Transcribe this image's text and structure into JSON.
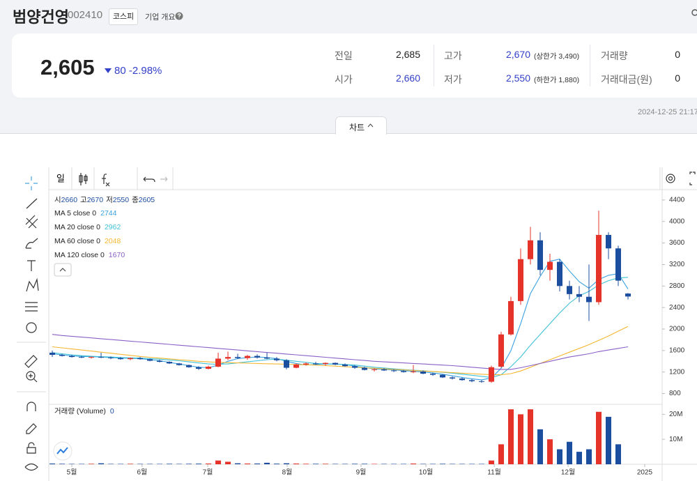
{
  "header": {
    "title": "범양건영",
    "code": "002410",
    "market": "코스피",
    "company_info": "기업 개요"
  },
  "quote": {
    "price": "2,605",
    "change": "80",
    "change_pct": "-2.98%"
  },
  "stats": [
    {
      "label": "전일",
      "value": "2,685"
    },
    {
      "label": "시가",
      "value": "2,660"
    },
    {
      "label": "고가",
      "value": "2,670",
      "note": "(상한가 3,490)"
    },
    {
      "label": "저가",
      "value": "2,550",
      "note": "(하한가 1,880)"
    },
    {
      "label": "거래량",
      "value": "0"
    },
    {
      "label": "거래대금(원)",
      "value": "0"
    }
  ],
  "timestamp": "2024-12-25 21:17",
  "tab": "차트",
  "toolbar": {
    "period": "일",
    "indicators": "지표"
  },
  "chart_data": {
    "type": "candlestick",
    "ohlc_labels": [
      "시",
      "고",
      "저",
      "종"
    ],
    "up_color": "#e5332a",
    "down_color": "#1c4ea0",
    "categories": [
      null,
      null,
      null,
      null,
      null,
      null,
      null,
      null,
      null,
      null,
      null,
      null,
      null,
      null,
      null,
      null,
      null,
      null,
      null,
      null,
      null,
      null,
      null,
      null,
      null,
      null,
      null,
      null,
      null,
      null,
      null,
      null,
      null,
      null,
      null,
      null,
      null,
      null,
      null,
      null,
      null,
      null,
      null,
      null,
      null,
      null,
      null,
      null,
      null,
      null,
      null,
      null,
      null,
      null,
      null,
      null,
      null,
      null,
      null,
      null
    ],
    "xlim": [
      -0.36,
      62.5
    ],
    "xticks": [
      {
        "value": 2,
        "label": "5월"
      },
      {
        "value": 9.2,
        "label": "6월"
      },
      {
        "value": 15.93,
        "label": "7월"
      },
      {
        "value": 24.07,
        "label": "8월"
      },
      {
        "value": 31.64,
        "label": "9월"
      },
      {
        "value": 38.29,
        "label": "10월"
      },
      {
        "value": 45.29,
        "label": "11월"
      },
      {
        "value": 52.86,
        "label": "12월"
      },
      {
        "value": 60.71,
        "label": "2025"
      }
    ],
    "ylim": [
      600,
      4580
    ],
    "yticks": [
      4400,
      4000,
      3600,
      3200,
      2800,
      2400,
      2000,
      1600,
      1200,
      800
    ],
    "grid": false,
    "candles": {
      "open": [
        1560,
        1520,
        1500,
        1480,
        1470,
        1480,
        1470,
        1460,
        1440,
        1460,
        1440,
        1410,
        1390,
        1360,
        1330,
        1290,
        1260,
        1300,
        1450,
        1480,
        1460,
        1500,
        1470,
        1450,
        1420,
        1280,
        1340,
        1360,
        1350,
        1370,
        1340,
        1310,
        1280,
        1240,
        1250,
        1230,
        1220,
        1200,
        1210,
        1170,
        1150,
        1100,
        1080,
        1050,
        1030,
        1020,
        1300,
        1900,
        2520,
        3300,
        3650,
        3100,
        3250,
        2800,
        2650,
        2600,
        2500,
        3750,
        3500,
        2660
      ],
      "high": [
        1600,
        1540,
        1520,
        1500,
        1490,
        1560,
        1490,
        1480,
        1470,
        1480,
        1450,
        1430,
        1400,
        1370,
        1340,
        1310,
        1320,
        1560,
        1580,
        1540,
        1520,
        1530,
        1560,
        1480,
        1440,
        1360,
        1380,
        1390,
        1380,
        1380,
        1360,
        1330,
        1300,
        1270,
        1270,
        1250,
        1240,
        1330,
        1230,
        1190,
        1160,
        1120,
        1100,
        1070,
        1050,
        1320,
        1950,
        2600,
        3500,
        3900,
        3800,
        3400,
        3300,
        2900,
        2800,
        3200,
        4200,
        3800,
        3550,
        2670
      ],
      "low": [
        1480,
        1490,
        1470,
        1460,
        1450,
        1460,
        1440,
        1430,
        1420,
        1430,
        1400,
        1380,
        1350,
        1320,
        1280,
        1240,
        1250,
        1290,
        1420,
        1440,
        1430,
        1450,
        1440,
        1400,
        1250,
        1270,
        1320,
        1330,
        1320,
        1330,
        1300,
        1260,
        1230,
        1210,
        1220,
        1200,
        1190,
        1180,
        1160,
        1130,
        1090,
        1060,
        1040,
        1010,
        1000,
        1000,
        1280,
        1880,
        2450,
        3200,
        3000,
        2900,
        2700,
        2550,
        2500,
        2150,
        2450,
        3300,
        2800,
        2550
      ],
      "close": [
        1520,
        1500,
        1480,
        1470,
        1480,
        1470,
        1460,
        1440,
        1460,
        1440,
        1410,
        1390,
        1360,
        1330,
        1290,
        1260,
        1300,
        1450,
        1480,
        1460,
        1500,
        1470,
        1450,
        1420,
        1280,
        1340,
        1360,
        1350,
        1370,
        1340,
        1310,
        1280,
        1240,
        1250,
        1230,
        1220,
        1200,
        1210,
        1170,
        1150,
        1100,
        1080,
        1050,
        1030,
        1020,
        1290,
        1900,
        2520,
        3300,
        3650,
        3100,
        3250,
        2800,
        2650,
        2600,
        2500,
        3750,
        3500,
        2900,
        2605
      ]
    },
    "series": [
      {
        "name": "MA 5 close 0",
        "color": "#3aa0e0",
        "values": [
          1540,
          1520,
          1500,
          1490,
          1485,
          1480,
          1470,
          1460,
          1455,
          1450,
          1430,
          1410,
          1380,
          1350,
          1320,
          1290,
          1280,
          1330,
          1400,
          1450,
          1470,
          1480,
          1470,
          1450,
          1400,
          1360,
          1330,
          1340,
          1350,
          1350,
          1340,
          1310,
          1280,
          1260,
          1250,
          1240,
          1225,
          1215,
          1200,
          1185,
          1160,
          1130,
          1100,
          1075,
          1055,
          1090,
          1270,
          1600,
          2100,
          2660,
          2980,
          3260,
          3300,
          3080,
          2880,
          2760,
          2920,
          3000,
          3030,
          2744
        ]
      },
      {
        "name": "MA 20 close 0",
        "color": "#3fc1d6",
        "values": [
          1560,
          1540,
          1520,
          1505,
          1495,
          1485,
          1480,
          1470,
          1465,
          1460,
          1450,
          1440,
          1425,
          1410,
          1390,
          1370,
          1350,
          1345,
          1350,
          1370,
          1390,
          1410,
          1430,
          1440,
          1420,
          1400,
          1380,
          1360,
          1350,
          1345,
          1340,
          1330,
          1310,
          1290,
          1275,
          1260,
          1245,
          1235,
          1225,
          1210,
          1195,
          1180,
          1160,
          1140,
          1120,
          1100,
          1150,
          1300,
          1480,
          1700,
          1900,
          2100,
          2300,
          2480,
          2620,
          2700,
          2820,
          2900,
          2950,
          2962
        ]
      },
      {
        "name": "MA 60 close 0",
        "color": "#f5b731",
        "values": [
          1670,
          1650,
          1630,
          1610,
          1590,
          1570,
          1550,
          1530,
          1510,
          1490,
          1475,
          1460,
          1445,
          1430,
          1415,
          1400,
          1390,
          1380,
          1375,
          1370,
          1365,
          1360,
          1355,
          1350,
          1345,
          1340,
          1335,
          1330,
          1320,
          1310,
          1300,
          1290,
          1280,
          1270,
          1260,
          1250,
          1240,
          1230,
          1220,
          1210,
          1200,
          1190,
          1180,
          1170,
          1160,
          1150,
          1150,
          1170,
          1220,
          1290,
          1360,
          1430,
          1500,
          1570,
          1640,
          1710,
          1790,
          1870,
          1960,
          2048
        ]
      },
      {
        "name": "MA 120 close 0",
        "color": "#8a5fc8",
        "values": [
          1900,
          1880,
          1865,
          1850,
          1835,
          1820,
          1805,
          1790,
          1775,
          1760,
          1745,
          1730,
          1715,
          1700,
          1685,
          1670,
          1655,
          1640,
          1625,
          1610,
          1595,
          1580,
          1565,
          1550,
          1535,
          1520,
          1505,
          1490,
          1475,
          1460,
          1445,
          1430,
          1415,
          1400,
          1390,
          1380,
          1370,
          1360,
          1350,
          1340,
          1330,
          1320,
          1305,
          1290,
          1275,
          1260,
          1250,
          1250,
          1280,
          1320,
          1360,
          1400,
          1440,
          1480,
          1510,
          1540,
          1580,
          1610,
          1640,
          1670
        ]
      }
    ],
    "volume": {
      "name": "거래량 (Volume)",
      "ylim": [
        0,
        24000000
      ],
      "yticks": [
        {
          "value": 20000000,
          "label": "20M"
        },
        {
          "value": 10000000,
          "label": "10M"
        }
      ],
      "values": [
        300000,
        200000,
        150000,
        150000,
        200000,
        400000,
        150000,
        150000,
        200000,
        150000,
        150000,
        150000,
        200000,
        150000,
        200000,
        250000,
        300000,
        1500000,
        1000000,
        400000,
        300000,
        300000,
        600000,
        250000,
        400000,
        300000,
        200000,
        200000,
        200000,
        150000,
        150000,
        200000,
        200000,
        150000,
        150000,
        150000,
        150000,
        300000,
        150000,
        150000,
        200000,
        150000,
        150000,
        150000,
        150000,
        1500000,
        8000000,
        22000000,
        20000000,
        22000000,
        14000000,
        10000000,
        6000000,
        9000000,
        5000000,
        6000000,
        21000000,
        19000000,
        8000000,
        0
      ]
    }
  }
}
